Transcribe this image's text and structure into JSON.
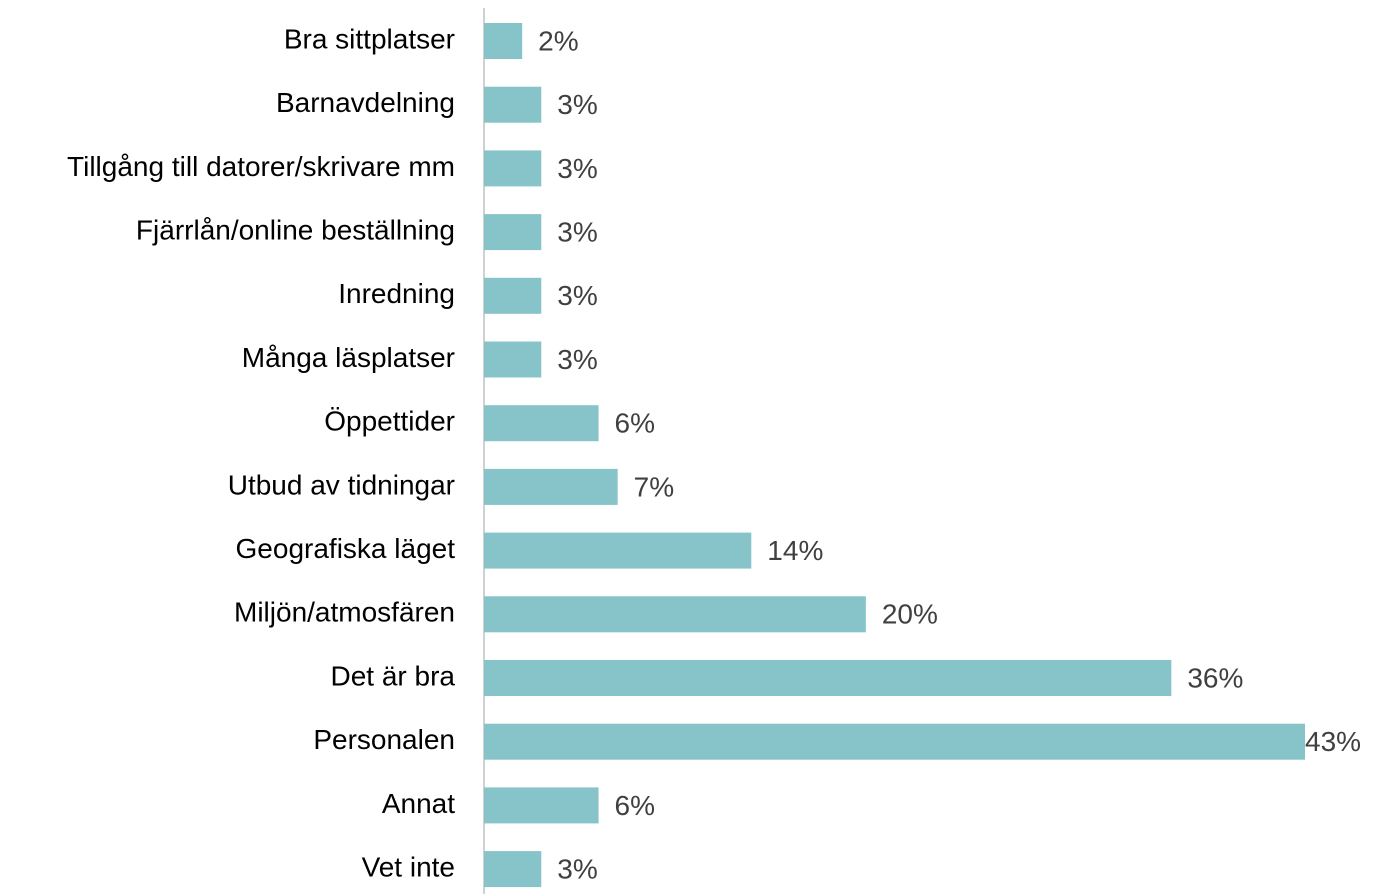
{
  "chart_data": {
    "type": "bar",
    "orientation": "horizontal",
    "categories": [
      "Bra sittplatser",
      "Barnavdelning",
      "Tillgång till datorer/skrivare mm",
      "Fjärrlån/online beställning",
      "Inredning",
      "Många läsplatser",
      "Öppettider",
      "Utbud av tidningar",
      "Geografiska läget",
      "Miljön/atmosfären",
      "Det är bra",
      "Personalen",
      "Annat",
      "Vet inte"
    ],
    "values": [
      2,
      3,
      3,
      3,
      3,
      3,
      6,
      7,
      14,
      20,
      36,
      43,
      6,
      3
    ],
    "value_labels": [
      "2%",
      "3%",
      "3%",
      "3%",
      "3%",
      "3%",
      "6%",
      "7%",
      "14%",
      "20%",
      "36%",
      "43%",
      "6%",
      "3%"
    ],
    "color": "#86c4ca"
  }
}
